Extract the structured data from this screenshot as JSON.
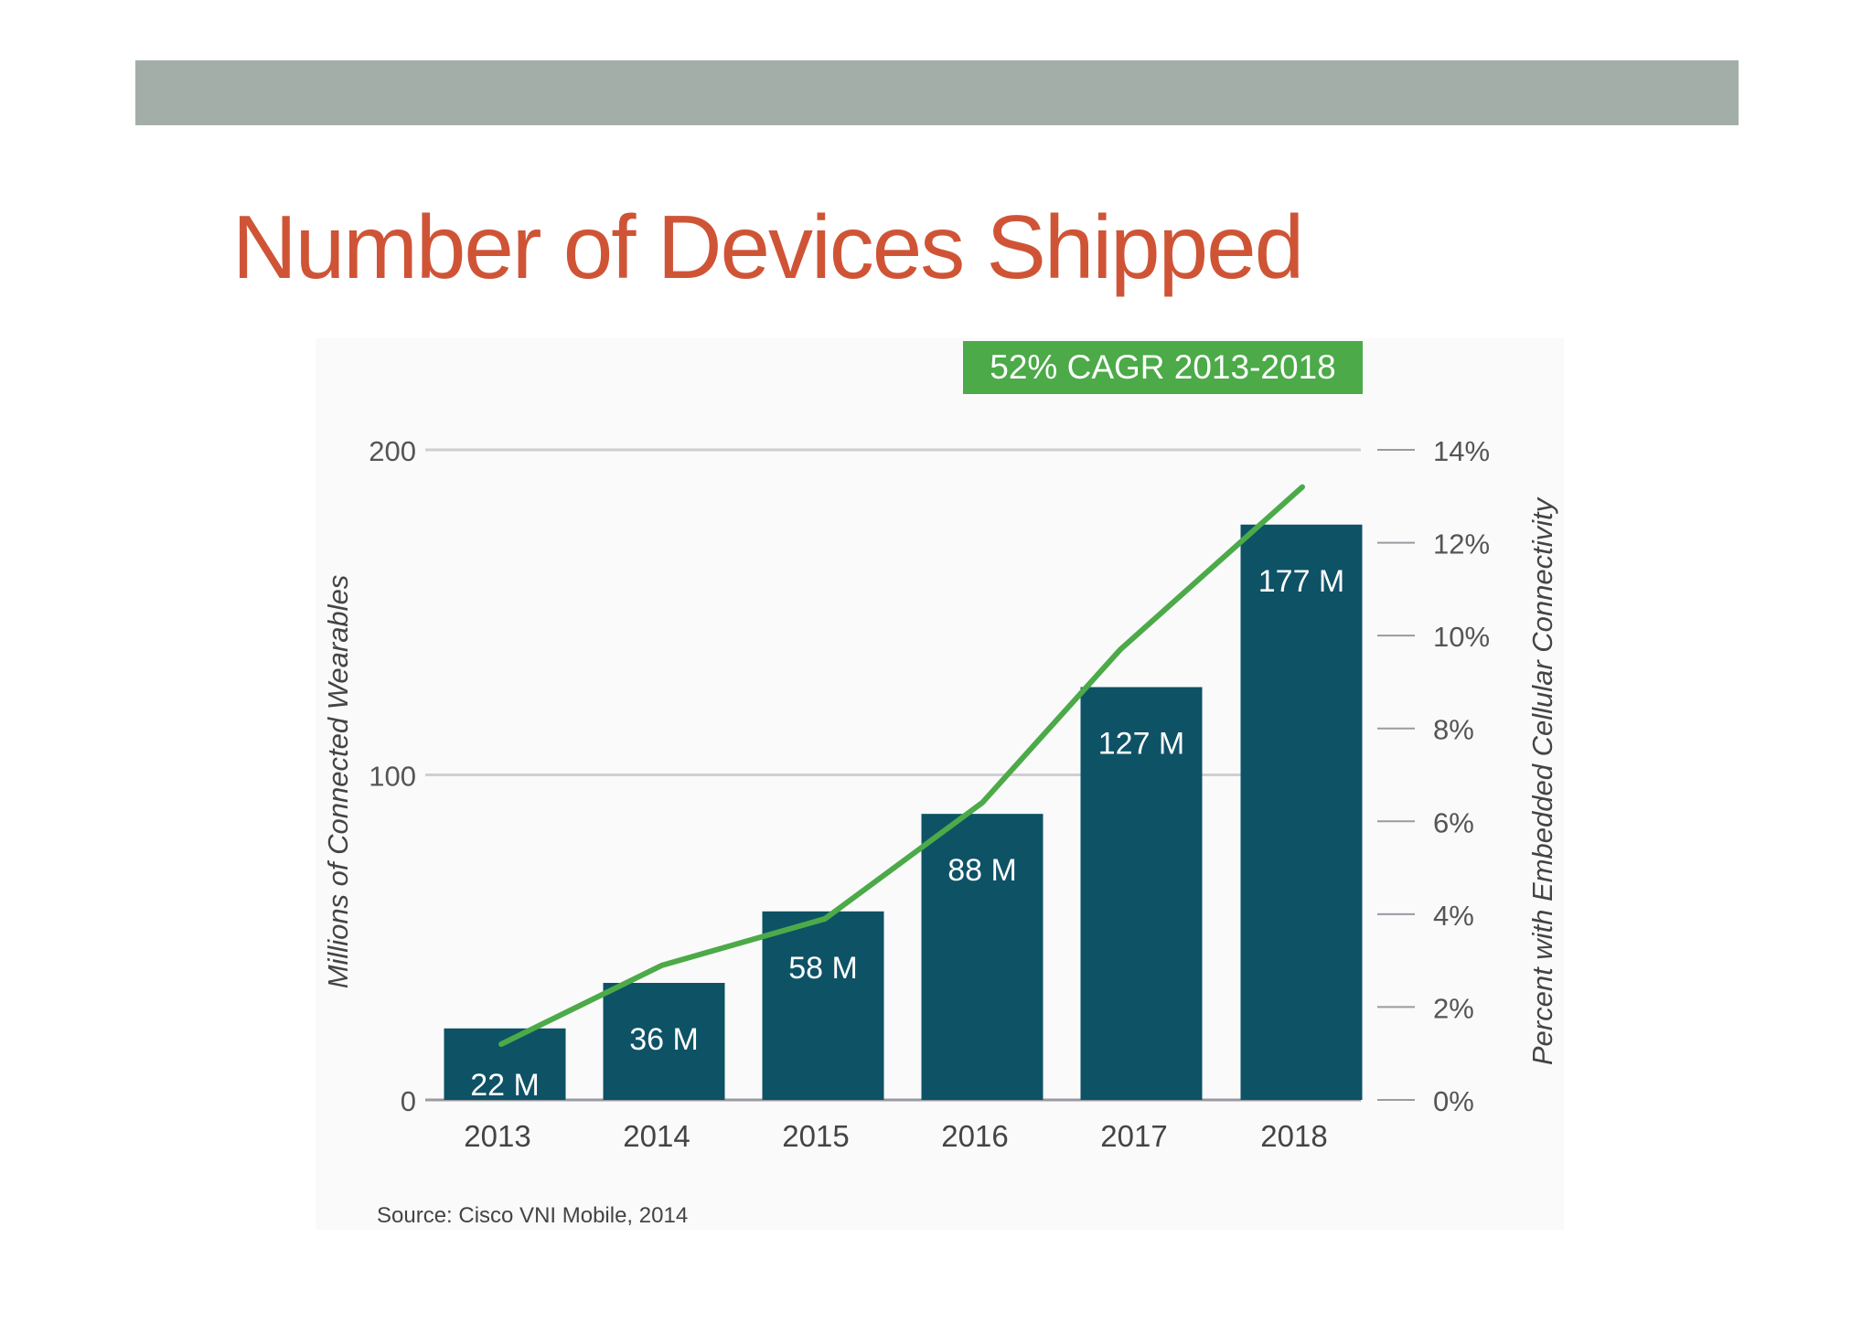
{
  "slide": {
    "title": "Number of Devices Shipped"
  },
  "chart_data": {
    "type": "bar",
    "title": "",
    "badge": "52% CAGR 2013-2018",
    "source": "Source: Cisco VNI Mobile, 2014",
    "categories": [
      "2013",
      "2014",
      "2015",
      "2016",
      "2017",
      "2018"
    ],
    "series": [
      {
        "name": "Millions of Connected Wearables",
        "type": "bar",
        "axis": "left",
        "values": [
          22,
          36,
          58,
          88,
          127,
          177
        ],
        "labels": [
          "22 M",
          "36 M",
          "58 M",
          "88 M",
          "127 M",
          "177 M"
        ]
      },
      {
        "name": "Percent with Embedded Cellular Connectivity",
        "type": "line",
        "axis": "right",
        "values": [
          1.2,
          2.9,
          3.9,
          6.4,
          9.7,
          13.2
        ]
      }
    ],
    "ylabel": "Millions of Connected Wearables",
    "ylim": [
      0,
      200
    ],
    "yticks": [
      "0",
      "100",
      "200"
    ],
    "y2label": "Percent with Embedded Cellular Connectivity",
    "y2lim": [
      0,
      14
    ],
    "y2ticks": [
      "0%",
      "2%",
      "4%",
      "6%",
      "8%",
      "10%",
      "12%",
      "14%"
    ],
    "grid": true,
    "colors": {
      "bar": "#0e5266",
      "line": "#4caa48",
      "badge": "#4caa48",
      "grid": "#cfcfd3",
      "bar_label": "#ffffff",
      "tick": "#555555"
    }
  }
}
